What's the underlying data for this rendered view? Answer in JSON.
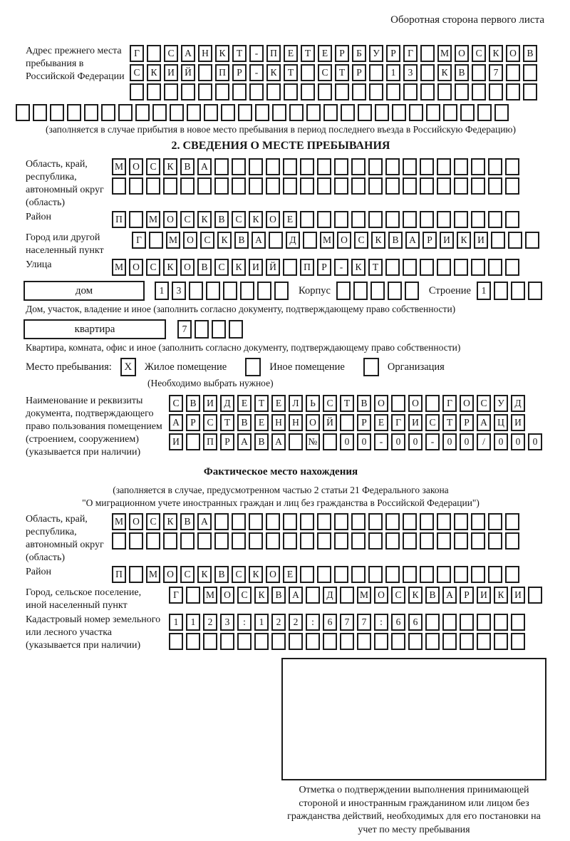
{
  "page": {
    "side_note": "Оборотная сторона первого листа"
  },
  "prev_address": {
    "label": "Адрес прежнего места пребывания в Российской Федерации",
    "rows": [
      {
        "text": "Г САНКТ-ПЕТЕРБУРГ МОСКОВ",
        "count": 24
      },
      {
        "text": "СКИЙ ПР-КТ СТР 13 КВ 7",
        "count": 24
      },
      {
        "text": "",
        "count": 24
      }
    ],
    "extra_row": {
      "text": "",
      "count": 29
    },
    "note": "(заполняется в случае прибытия в новое место пребывания в период последнего въезда в Российскую Федерацию)"
  },
  "section2": {
    "title": "2. СВЕДЕНИЯ О МЕСТЕ ПРЕБЫВАНИЯ",
    "region": {
      "label": "Область, край, республика, автономный округ (область)",
      "rows": [
        {
          "text": "МОСКВА",
          "count": 24
        },
        {
          "text": "",
          "count": 24
        }
      ]
    },
    "district": {
      "label": "Район",
      "row": {
        "text": "П МОСКВСКОЕ",
        "count": 24
      }
    },
    "city": {
      "label": "Город или другой населенный пункт",
      "row": {
        "text": "Г МОСКВА Д МОСКВАРИКИ",
        "count": 24
      }
    },
    "street": {
      "label": "Улица",
      "row": {
        "text": "МОСКОВСКИЙ ПР-КТ",
        "count": 24
      }
    },
    "house": {
      "box_label": "дом",
      "number": {
        "text": "13",
        "count": 8
      },
      "korpus_label": "Корпус",
      "korpus": {
        "text": "",
        "count": 5
      },
      "stroenie_label": "Строение",
      "stroenie": {
        "text": "1",
        "count": 4
      },
      "note": "Дом, участок, владение и иное (заполнить согласно документу, подтверждающему право собственности)"
    },
    "apartment": {
      "box_label": "квартира",
      "number": {
        "text": "7",
        "count": 4
      },
      "note": "Квартира, комната, офис и иное (заполнить согласно документу, подтверждающему право собственности)"
    },
    "stay_type": {
      "label": "Место пребывания:",
      "options": [
        {
          "label": "Жилое помещение",
          "box": {
            "text": "X",
            "count": 1
          }
        },
        {
          "label": "Иное помещение",
          "box": {
            "text": "",
            "count": 1
          }
        },
        {
          "label": "Организация",
          "box": {
            "text": "",
            "count": 1
          }
        }
      ],
      "note": "(Необходимо выбрать нужное)"
    },
    "document": {
      "label": "Наименование и реквизиты документа, подтверждающего право пользования помещением (строением, сооружением) (указывается при наличии)",
      "rows": [
        {
          "text": "СВИДЕТЕЛЬСТВО О ГОСУД",
          "count": 21
        },
        {
          "text": "АРСТВЕННОЙ РЕГИСТРАЦИ",
          "count": 21
        },
        {
          "text": "И ПРАВА № 00-00-00/000",
          "count": 21
        }
      ]
    }
  },
  "actual_location": {
    "title": "Фактическое место нахождения",
    "note_line1": "(заполняется в случае, предусмотренном частью 2 статьи 21 Федерального закона",
    "note_line2": "\"О миграционном учете иностранных граждан и лиц без гражданства в Российской Федерации\")",
    "region": {
      "label": "Область, край, республика, автономный округ (область)",
      "rows": [
        {
          "text": "МОСКВА",
          "count": 24
        },
        {
          "text": "",
          "count": 24
        }
      ]
    },
    "district": {
      "label": "Район",
      "row": {
        "text": "П МОСКВСКОЕ",
        "count": 24
      }
    },
    "city": {
      "label": "Город, сельское поселение, иной населенный пункт",
      "row": {
        "text": "Г МОСКВА Д МОСКВАРИКИ",
        "count": 22
      }
    },
    "cadastral": {
      "label": "Кадастровый номер земельного или лесного участка (указывается при наличии)",
      "rows": [
        {
          "text": "1123:122:677:66",
          "count": 21
        },
        {
          "text": "",
          "count": 21
        }
      ]
    },
    "stamp_note": "Отметка о подтверждении выполнения принимающей стороной и иностранным гражданином или лицом без гражданства действий, необходимых для его постановки на учет по месту пребывания"
  },
  "colors": {
    "ink": "#1c1c1c",
    "paper": "#ffffff"
  }
}
